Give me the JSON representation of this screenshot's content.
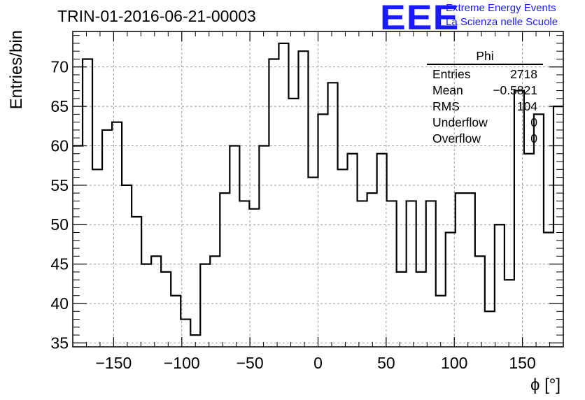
{
  "title": "TRIN-01-2016-06-21-00003",
  "logo": {
    "mark": "EEE",
    "line1": "Extreme Energy Events",
    "line2": "La Scienza nelle Scuole",
    "color": "#1a1aff"
  },
  "stats": {
    "name": "Phi",
    "rows": [
      {
        "label": "Entries",
        "value": "2718"
      },
      {
        "label": "Mean",
        "value": "−0.5821"
      },
      {
        "label": "RMS",
        "value": "104"
      },
      {
        "label": "Underflow",
        "value": "0"
      },
      {
        "label": "Overflow",
        "value": "0"
      }
    ]
  },
  "chart_data": {
    "type": "bar",
    "histogram": true,
    "xlabel": "ϕ [°]",
    "ylabel": "Entries/bin",
    "xlim": [
      -180,
      180
    ],
    "ylim": [
      34.5,
      74.5
    ],
    "xticks": [
      -150,
      -100,
      -50,
      0,
      50,
      100,
      150
    ],
    "xtick_labels": [
      "−150",
      "−100",
      "−50",
      "0",
      "50",
      "100",
      "150"
    ],
    "yticks": [
      35,
      40,
      45,
      50,
      55,
      60,
      65,
      70
    ],
    "grid": true,
    "bin_width": 7.2,
    "x_start": -180,
    "values": [
      60,
      71,
      57,
      62,
      63,
      55,
      51,
      45,
      46,
      44,
      41,
      38,
      36,
      45,
      46,
      54,
      60,
      53,
      52,
      60,
      71,
      73,
      66,
      72,
      56,
      64,
      68,
      57,
      59,
      53,
      54,
      59,
      53,
      44,
      53,
      44,
      53,
      41,
      49,
      54,
      54,
      46,
      39,
      50,
      43,
      67,
      59,
      64,
      49,
      65
    ],
    "line_color": "#000000",
    "grid_color": "#999999"
  }
}
